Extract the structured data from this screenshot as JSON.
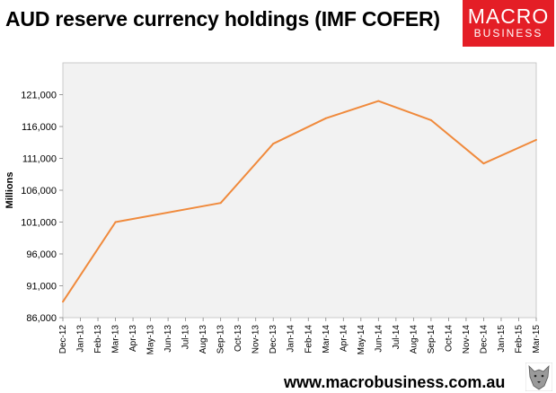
{
  "header": {
    "title": "AUD reserve currency holdings (IMF COFER)",
    "logo_line1": "MACRO",
    "logo_line2": "BUSINESS"
  },
  "footer": {
    "url": "www.macrobusiness.com.au"
  },
  "colors": {
    "line": "#f08a3c",
    "plot_bg": "#f2f2f2",
    "brand": "#e41e26"
  },
  "chart_data": {
    "type": "line",
    "title": "AUD reserve currency holdings (IMF COFER)",
    "xlabel": "",
    "ylabel": "Millions",
    "ylim": [
      86000,
      126000
    ],
    "yticks": [
      "86,000",
      "91,000",
      "96,000",
      "101,000",
      "106,000",
      "111,000",
      "116,000",
      "121,000"
    ],
    "yticks_values": [
      86000,
      91000,
      96000,
      101000,
      106000,
      111000,
      116000,
      121000
    ],
    "categories": [
      "Dec-12",
      "Jan-13",
      "Feb-13",
      "Mar-13",
      "Apr-13",
      "May-13",
      "Jun-13",
      "Jul-13",
      "Aug-13",
      "Sep-13",
      "Oct-13",
      "Nov-13",
      "Dec-13",
      "Jan-14",
      "Feb-14",
      "Mar-14",
      "Apr-14",
      "May-14",
      "Jun-14",
      "Jul-14",
      "Aug-14",
      "Sep-14",
      "Oct-14",
      "Nov-14",
      "Dec-14",
      "Jan-15",
      "Feb-15",
      "Mar-15"
    ],
    "points": [
      {
        "x": "Dec-12",
        "y": 88500
      },
      {
        "x": "Mar-13",
        "y": 101000
      },
      {
        "x": "Sep-13",
        "y": 104000
      },
      {
        "x": "Dec-13",
        "y": 113300
      },
      {
        "x": "Mar-14",
        "y": 117300
      },
      {
        "x": "Jun-14",
        "y": 120000
      },
      {
        "x": "Sep-14",
        "y": 117000
      },
      {
        "x": "Dec-14",
        "y": 110200
      },
      {
        "x": "Mar-15",
        "y": 113900
      }
    ],
    "grid": false,
    "legend": "none"
  }
}
